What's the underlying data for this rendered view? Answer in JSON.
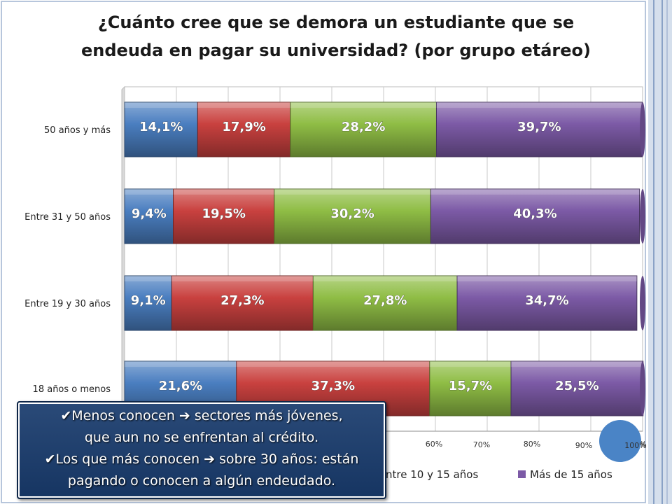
{
  "title": {
    "line1": "¿Cuánto cree que se demora un estudiante que se",
    "line2": "endeuda en pagar su universidad? (por grupo etáreo)"
  },
  "colors": {
    "background": "#ffffff",
    "grid": "#c8c8c8",
    "series": [
      "#4a7ec0",
      "#c9413f",
      "#8fbd45",
      "#7c5aa6"
    ]
  },
  "chart_data": {
    "type": "bar",
    "orientation": "horizontal",
    "stacked": true,
    "percent": true,
    "categories": [
      "50 años y más",
      "Entre 31 y 50 años",
      "Entre 19 y 30 años",
      "18 años o menos"
    ],
    "series": [
      {
        "values": [
          14.1,
          9.4,
          9.1,
          21.6
        ],
        "labels": [
          "14,1%",
          "9,4%",
          "9,1%",
          "21,6%"
        ]
      },
      {
        "values": [
          17.9,
          19.5,
          27.3,
          37.3
        ],
        "labels": [
          "17,9%",
          "19,5%",
          "27,3%",
          "37,3%"
        ]
      },
      {
        "name": "ntre 10 y 15 años",
        "values": [
          28.2,
          30.2,
          27.8,
          15.7
        ],
        "labels": [
          "28,2%",
          "30,2%",
          "27,8%",
          "15,7%"
        ]
      },
      {
        "name": "Más de 15 años",
        "values": [
          39.7,
          40.3,
          34.7,
          25.5
        ],
        "labels": [
          "39,7%",
          "40,3%",
          "34,7%",
          "25,5%"
        ]
      }
    ],
    "xlim": [
      0,
      100
    ],
    "x_tick_labels_visible": [
      "60%",
      "70%",
      "80%",
      "90%",
      "100%"
    ],
    "grid": true,
    "legend": "bottom"
  },
  "callout": {
    "lines": [
      "✔Menos conocen  ➔ sectores más jóvenes,",
      "que aun no se enfrentan al crédito.",
      "✔Los que más conocen  ➔ sobre 30 años: están",
      "pagando o conocen a algún endeudado."
    ]
  }
}
